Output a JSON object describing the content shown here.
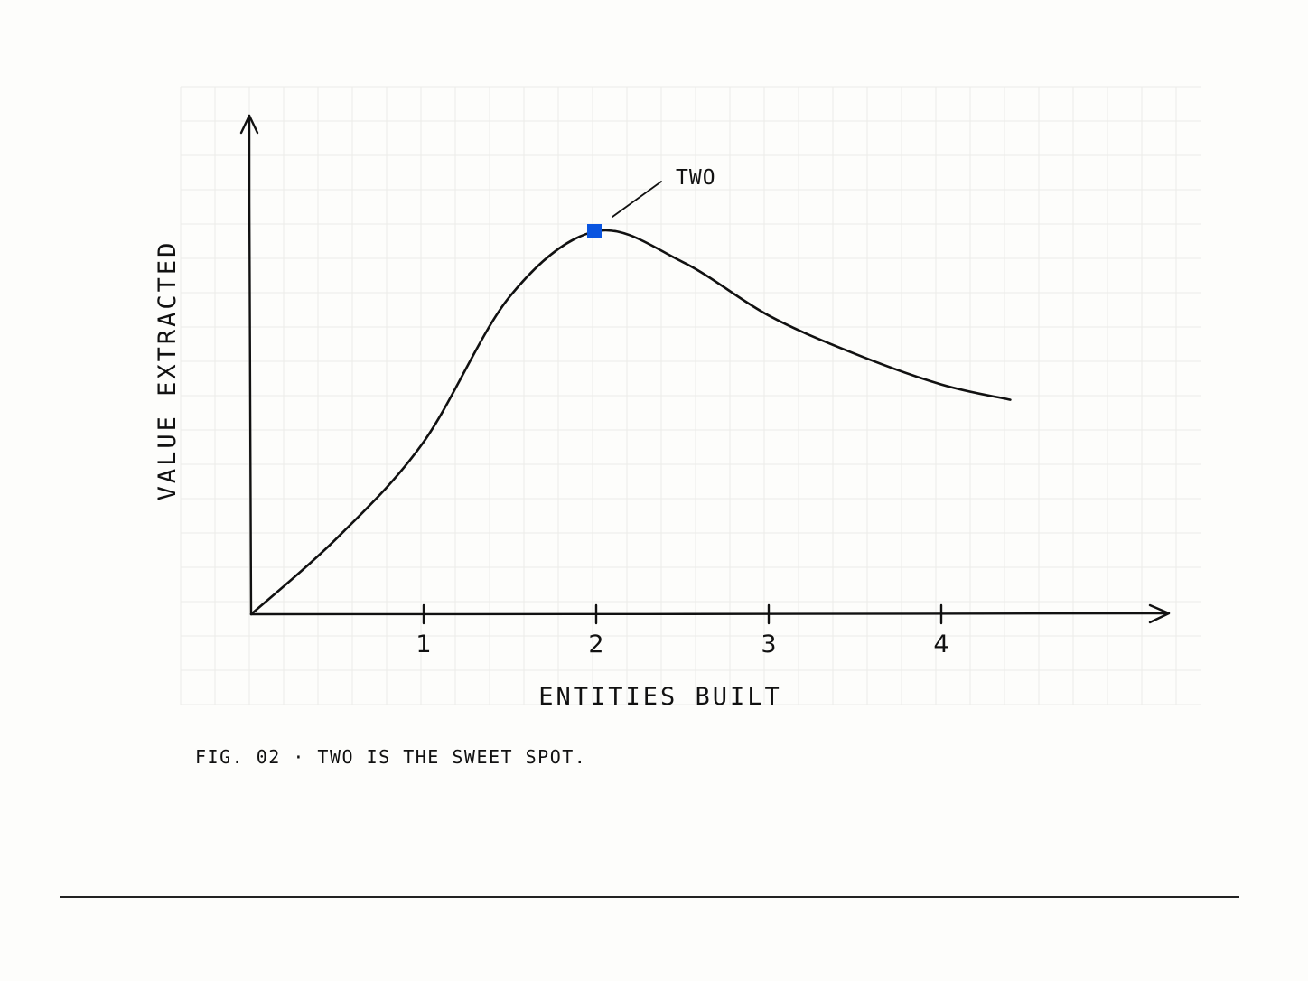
{
  "chart_data": {
    "type": "line",
    "xlabel": "ENTITIES BUILT",
    "ylabel": "VALUE EXTRACTED",
    "xlim": [
      0,
      4.8
    ],
    "ylim": [
      0,
      1.1
    ],
    "xticks": [
      "1",
      "2",
      "3",
      "4"
    ],
    "series": [
      {
        "x": [
          0,
          0.5,
          1,
          1.5,
          2,
          2.5,
          3,
          3.5,
          4,
          4.4
        ],
        "values": [
          0,
          0.2,
          0.45,
          0.83,
          1.0,
          0.92,
          0.78,
          0.68,
          0.6,
          0.56
        ]
      }
    ],
    "highlight": {
      "x": 2,
      "y": 1.0,
      "label": "TWO",
      "color": "#0a55e0"
    },
    "caption": "FIG. 02 · TWO IS THE SWEET SPOT."
  }
}
